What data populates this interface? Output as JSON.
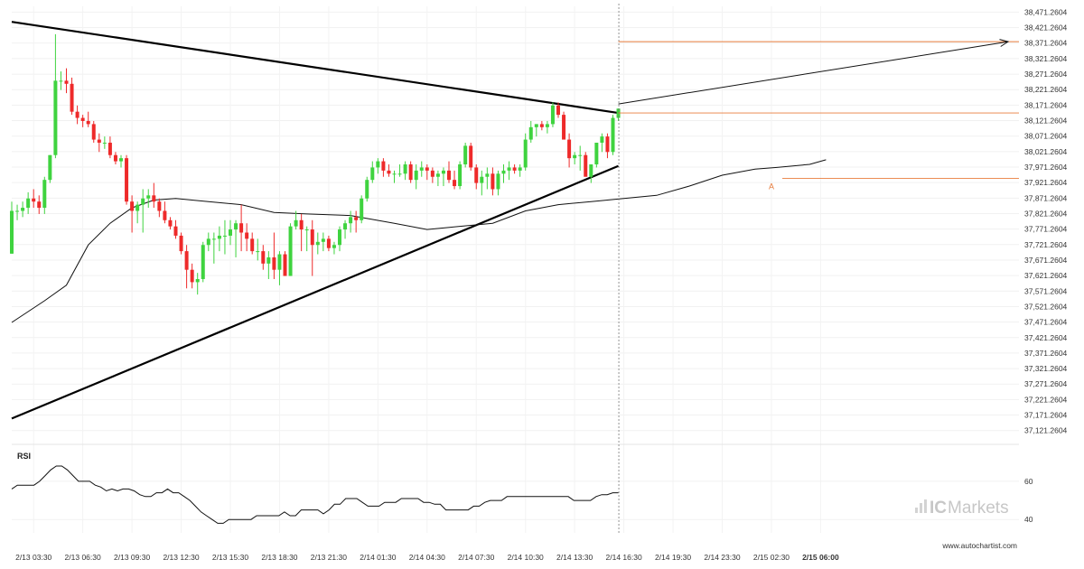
{
  "chart_data": {
    "type": "candlestick",
    "watermark": {
      "brand_ic": "IC",
      "brand_rest": "Markets"
    },
    "source": "www.autochartist.com",
    "rsi_label": "RSI",
    "point_label": "A",
    "y_ticks": [
      "38,471.2604",
      "38,421.2604",
      "38,371.2604",
      "38,321.2604",
      "38,271.2604",
      "38,221.2604",
      "38,171.2604",
      "38,121.2604",
      "38,071.2604",
      "38,021.2604",
      "37,971.2604",
      "37,921.2604",
      "37,871.2604",
      "37,821.2604",
      "37,771.2604",
      "37,721.2604",
      "37,671.2604",
      "37,621.2604",
      "37,571.2604",
      "37,521.2604",
      "37,471.2604",
      "37,421.2604",
      "37,371.2604",
      "37,321.2604",
      "37,271.2604",
      "37,221.2604",
      "37,171.2604",
      "37,121.2604"
    ],
    "ylim": [
      37100,
      38490
    ],
    "x_ticks": [
      {
        "i": 4,
        "label": "2/13 03:30"
      },
      {
        "i": 13,
        "label": "2/13 06:30"
      },
      {
        "i": 22,
        "label": "2/13 09:30"
      },
      {
        "i": 31,
        "label": "2/13 12:30"
      },
      {
        "i": 40,
        "label": "2/13 15:30"
      },
      {
        "i": 49,
        "label": "2/13 18:30"
      },
      {
        "i": 58,
        "label": "2/13 21:30"
      },
      {
        "i": 67,
        "label": "2/14 01:30"
      },
      {
        "i": 76,
        "label": "2/14 04:30"
      },
      {
        "i": 85,
        "label": "2/14 07:30"
      },
      {
        "i": 94,
        "label": "2/14 10:30"
      },
      {
        "i": 103,
        "label": "2/14 13:30"
      },
      {
        "i": 112,
        "label": "2/14 16:30"
      },
      {
        "i": 121,
        "label": "2/14 19:30"
      },
      {
        "i": 130,
        "label": "2/14 23:30"
      },
      {
        "i": 139,
        "label": "2/15 02:30"
      },
      {
        "i": 148,
        "label": "2/15 06:00",
        "bold": true
      }
    ],
    "candles": [
      [
        37692,
        37860,
        37692,
        37830
      ],
      [
        37830,
        37850,
        37800,
        37830
      ],
      [
        37830,
        37860,
        37810,
        37840
      ],
      [
        37840,
        37890,
        37820,
        37870
      ],
      [
        37870,
        37900,
        37840,
        37860
      ],
      [
        37860,
        37880,
        37820,
        37840
      ],
      [
        37840,
        37940,
        37820,
        37930
      ],
      [
        37930,
        38010,
        37920,
        38010
      ],
      [
        38010,
        38400,
        38000,
        38250
      ],
      [
        38250,
        38280,
        38220,
        38250
      ],
      [
        38250,
        38290,
        38210,
        38240
      ],
      [
        38240,
        38260,
        38140,
        38150
      ],
      [
        38150,
        38170,
        38110,
        38130
      ],
      [
        38130,
        38140,
        38100,
        38120
      ],
      [
        38120,
        38150,
        38100,
        38110
      ],
      [
        38110,
        38120,
        38050,
        38060
      ],
      [
        38060,
        38080,
        38020,
        38050
      ],
      [
        38050,
        38070,
        38030,
        38050
      ],
      [
        38050,
        38070,
        38000,
        38010
      ],
      [
        38010,
        38020,
        37980,
        37990
      ],
      [
        37990,
        38010,
        37970,
        38000
      ],
      [
        38000,
        38010,
        37850,
        37860
      ],
      [
        37860,
        37880,
        37760,
        37830
      ],
      [
        37830,
        37860,
        37790,
        37850
      ],
      [
        37850,
        37900,
        37760,
        37870
      ],
      [
        37870,
        37900,
        37840,
        37880
      ],
      [
        37880,
        37920,
        37840,
        37860
      ],
      [
        37860,
        37870,
        37810,
        37830
      ],
      [
        37830,
        37860,
        37790,
        37800
      ],
      [
        37800,
        37810,
        37770,
        37780
      ],
      [
        37780,
        37800,
        37740,
        37750
      ],
      [
        37750,
        37760,
        37690,
        37700
      ],
      [
        37700,
        37720,
        37580,
        37640
      ],
      [
        37640,
        37660,
        37580,
        37600
      ],
      [
        37600,
        37630,
        37560,
        37610
      ],
      [
        37610,
        37730,
        37600,
        37720
      ],
      [
        37720,
        37760,
        37700,
        37740
      ],
      [
        37740,
        37760,
        37660,
        37740
      ],
      [
        37740,
        37780,
        37700,
        37750
      ],
      [
        37750,
        37800,
        37690,
        37750
      ],
      [
        37750,
        37800,
        37720,
        37770
      ],
      [
        37770,
        37800,
        37680,
        37790
      ],
      [
        37790,
        37850,
        37700,
        37760
      ],
      [
        37760,
        37790,
        37700,
        37740
      ],
      [
        37740,
        37760,
        37690,
        37700
      ],
      [
        37700,
        37740,
        37670,
        37700
      ],
      [
        37700,
        37720,
        37640,
        37660
      ],
      [
        37660,
        37700,
        37610,
        37680
      ],
      [
        37680,
        37760,
        37610,
        37640
      ],
      [
        37640,
        37700,
        37590,
        37690
      ],
      [
        37690,
        37700,
        37620,
        37620
      ],
      [
        37620,
        37790,
        37620,
        37780
      ],
      [
        37780,
        37830,
        37770,
        37800
      ],
      [
        37800,
        37820,
        37700,
        37770
      ],
      [
        37770,
        37780,
        37700,
        37770
      ],
      [
        37770,
        37800,
        37620,
        37720
      ]
    ],
    "rsi": [
      56,
      58,
      58,
      58,
      58,
      60,
      63,
      66,
      68,
      68,
      66,
      63,
      60,
      60,
      60,
      58,
      57,
      55,
      56,
      55,
      56,
      56,
      55,
      53,
      52,
      52,
      54,
      54,
      56,
      54,
      54,
      52,
      50,
      47,
      44,
      42,
      40,
      38,
      38,
      40,
      40,
      40,
      40,
      40,
      42,
      42,
      42,
      42,
      42,
      44,
      42,
      42,
      45,
      45,
      45,
      45,
      43,
      45,
      48,
      48,
      51,
      51,
      51,
      49,
      47,
      47,
      47,
      49,
      49,
      49,
      51,
      51,
      51,
      51,
      49,
      49,
      48,
      48,
      45,
      45,
      45,
      45,
      45,
      47,
      47,
      49,
      50,
      50,
      50,
      52,
      52,
      52,
      52,
      52,
      52,
      52,
      52,
      52,
      52,
      52,
      52,
      50,
      50,
      50,
      50,
      52,
      53,
      53,
      54,
      54
    ],
    "rsi_ticks": [
      60,
      40
    ],
    "rsi_ylim": [
      33,
      77
    ]
  }
}
